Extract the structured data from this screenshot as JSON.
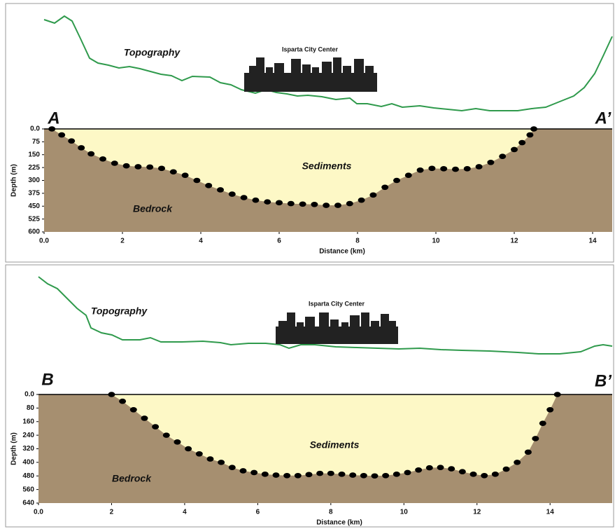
{
  "chart_data": [
    {
      "type": "cross-section",
      "x_label": "Distance (km)",
      "y_label": "Depth (m)",
      "annotations": {
        "city": "Isparta City Center",
        "topography": "Topography",
        "sediments": "Sediments",
        "bedrock": "Bedrock",
        "start": "A",
        "end": "A’"
      },
      "colors": {
        "sediments": "#fdf8c6",
        "bedrock": "#a68f70",
        "topography": "#2f9a4c",
        "boundary": "#000000"
      },
      "y_inverted": true,
      "xlim": [
        0,
        14.5
      ],
      "ylim": [
        0,
        600
      ],
      "xticks": [
        {
          "value": 0,
          "label": "0.0"
        },
        2,
        4,
        6,
        8,
        10,
        12,
        14
      ],
      "yticks": [
        {
          "value": 0,
          "label": "0.0"
        },
        75,
        150,
        225,
        300,
        375,
        450,
        525,
        600
      ],
      "x": [
        0.2,
        0.45,
        0.7,
        0.95,
        1.2,
        1.5,
        1.8,
        2.1,
        2.4,
        2.7,
        3.0,
        3.3,
        3.6,
        3.9,
        4.2,
        4.5,
        4.8,
        5.1,
        5.4,
        5.7,
        6.0,
        6.3,
        6.6,
        6.9,
        7.2,
        7.5,
        7.8,
        8.1,
        8.4,
        8.7,
        9.0,
        9.3,
        9.6,
        9.9,
        10.2,
        10.5,
        10.8,
        11.1,
        11.4,
        11.7,
        12.0,
        12.2,
        12.4,
        12.5
      ],
      "values": [
        0,
        35,
        70,
        110,
        145,
        175,
        200,
        215,
        220,
        222,
        230,
        250,
        270,
        300,
        330,
        355,
        380,
        400,
        415,
        425,
        430,
        435,
        438,
        440,
        445,
        445,
        435,
        415,
        385,
        340,
        300,
        270,
        240,
        230,
        232,
        235,
        232,
        220,
        195,
        160,
        120,
        80,
        35,
        0
      ]
    },
    {
      "type": "cross-section",
      "x_label": "Distance (km)",
      "y_label": "Depth (m)",
      "annotations": {
        "city": "Isparta City Center",
        "topography": "Topography",
        "sediments": "Sediments",
        "bedrock": "Bedrock",
        "start": "B",
        "end": "B’"
      },
      "colors": {
        "sediments": "#fdf8c6",
        "bedrock": "#a68f70",
        "topography": "#2f9a4c",
        "boundary": "#000000"
      },
      "y_inverted": true,
      "xlim": [
        0,
        15.7
      ],
      "ylim": [
        0,
        640
      ],
      "xticks": [
        {
          "value": 0,
          "label": "0.0"
        },
        2,
        4,
        6,
        8,
        10,
        12,
        14
      ],
      "yticks": [
        {
          "value": 0,
          "label": "0.0"
        },
        80,
        160,
        240,
        320,
        400,
        480,
        560,
        640
      ],
      "x": [
        2.0,
        2.3,
        2.6,
        2.9,
        3.2,
        3.5,
        3.8,
        4.1,
        4.4,
        4.7,
        5.0,
        5.3,
        5.6,
        5.9,
        6.2,
        6.5,
        6.8,
        7.1,
        7.4,
        7.7,
        8.0,
        8.3,
        8.6,
        8.9,
        9.2,
        9.5,
        9.8,
        10.1,
        10.4,
        10.7,
        11.0,
        11.3,
        11.6,
        11.9,
        12.2,
        12.5,
        12.8,
        13.1,
        13.4,
        13.6,
        13.8,
        14.0,
        14.2
      ],
      "values": [
        0,
        40,
        90,
        140,
        190,
        240,
        280,
        320,
        350,
        380,
        400,
        430,
        450,
        460,
        470,
        475,
        478,
        478,
        472,
        465,
        465,
        470,
        475,
        478,
        480,
        478,
        470,
        460,
        445,
        432,
        430,
        438,
        455,
        470,
        478,
        470,
        440,
        400,
        340,
        260,
        170,
        90,
        0
      ]
    }
  ]
}
